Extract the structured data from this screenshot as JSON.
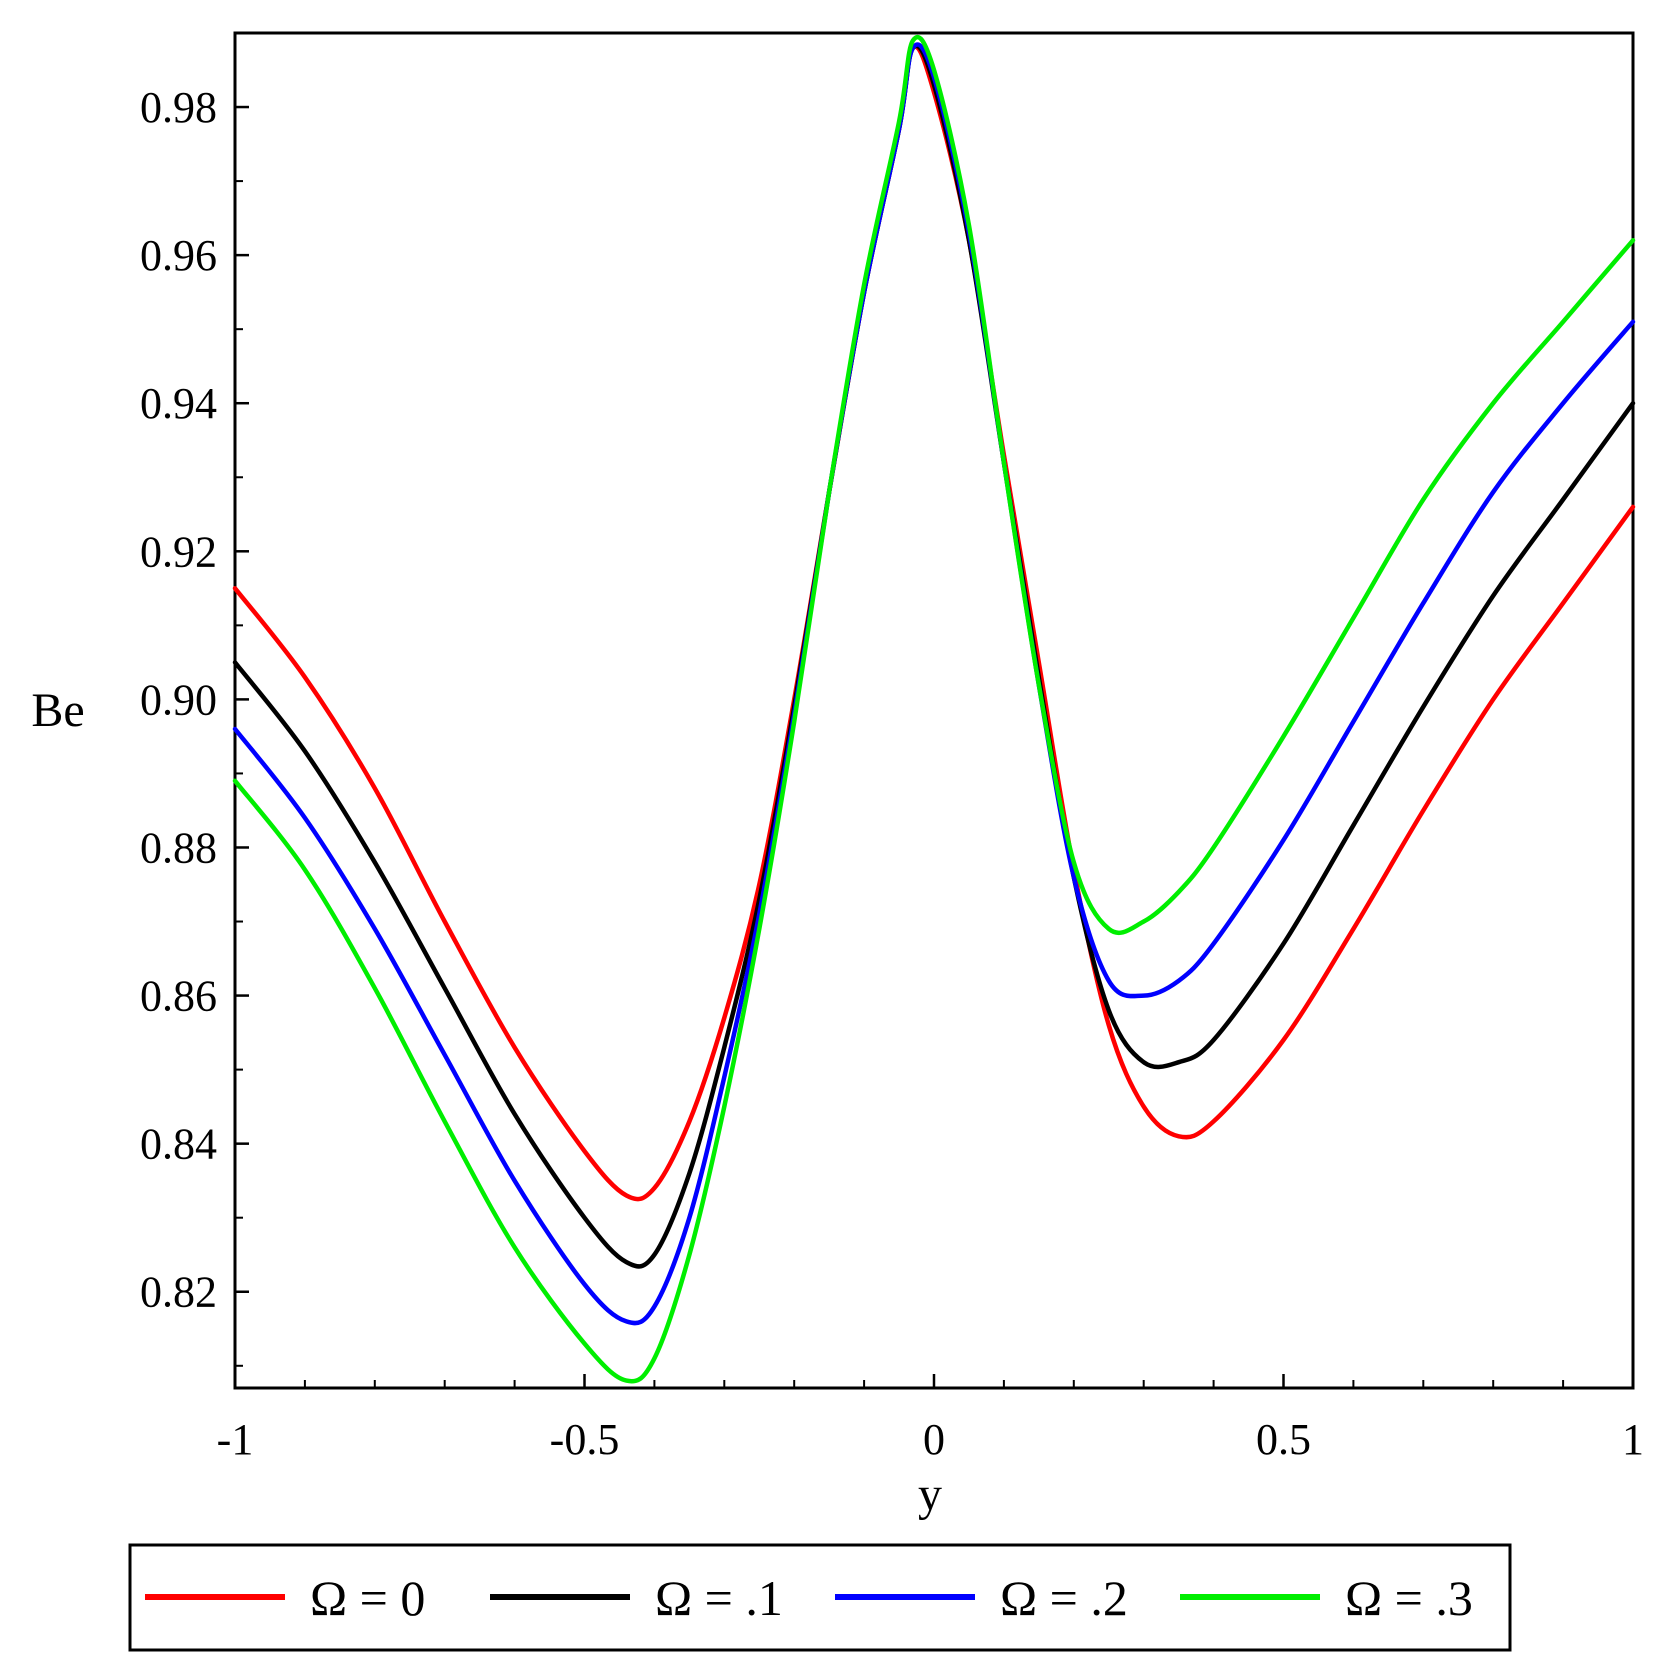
{
  "chart_data": {
    "type": "line",
    "title": "",
    "xlabel": "y",
    "ylabel": "Be",
    "xlim": [
      -1,
      1
    ],
    "ylim": [
      0.807,
      0.99
    ],
    "x_ticks": [
      -1,
      -0.5,
      0,
      0.5,
      1
    ],
    "x_tick_labels": [
      "-1",
      "-0.5",
      "0",
      "0.5",
      "1"
    ],
    "y_ticks": [
      0.82,
      0.84,
      0.86,
      0.88,
      0.9,
      0.92,
      0.94,
      0.96,
      0.98
    ],
    "y_tick_labels": [
      "0.82",
      "0.84",
      "0.86",
      "0.88",
      "0.90",
      "0.92",
      "0.94",
      "0.96",
      "0.98"
    ],
    "grid": false,
    "legend_position": "bottom",
    "x": [
      -1,
      -0.9,
      -0.8,
      -0.7,
      -0.6,
      -0.5,
      -0.44,
      -0.4,
      -0.35,
      -0.3,
      -0.25,
      -0.2,
      -0.15,
      -0.1,
      -0.05,
      -0.03,
      0,
      0.05,
      0.1,
      0.15,
      0.2,
      0.25,
      0.3,
      0.35,
      0.4,
      0.5,
      0.6,
      0.7,
      0.8,
      0.9,
      1
    ],
    "series": [
      {
        "name": "Ω = 0",
        "color": "#ff0000",
        "values": [
          0.915,
          0.903,
          0.888,
          0.87,
          0.853,
          0.839,
          0.833,
          0.834,
          0.843,
          0.857,
          0.875,
          0.9,
          0.928,
          0.955,
          0.977,
          0.988,
          0.982,
          0.962,
          0.933,
          0.905,
          0.877,
          0.856,
          0.845,
          0.841,
          0.843,
          0.854,
          0.869,
          0.885,
          0.9,
          0.913,
          0.926
        ]
      },
      {
        "name": "Ω = .1",
        "color": "#000000",
        "values": [
          0.905,
          0.893,
          0.878,
          0.861,
          0.844,
          0.83,
          0.824,
          0.825,
          0.836,
          0.853,
          0.873,
          0.899,
          0.928,
          0.955,
          0.977,
          0.988,
          0.983,
          0.962,
          0.932,
          0.903,
          0.876,
          0.858,
          0.851,
          0.851,
          0.854,
          0.867,
          0.883,
          0.899,
          0.914,
          0.927,
          0.94
        ]
      },
      {
        "name": "Ω = .2",
        "color": "#0000ff",
        "values": [
          0.896,
          0.884,
          0.869,
          0.852,
          0.835,
          0.821,
          0.816,
          0.818,
          0.83,
          0.849,
          0.871,
          0.898,
          0.928,
          0.955,
          0.977,
          0.988,
          0.984,
          0.963,
          0.932,
          0.902,
          0.876,
          0.862,
          0.86,
          0.862,
          0.867,
          0.881,
          0.897,
          0.913,
          0.928,
          0.94,
          0.951
        ]
      },
      {
        "name": "Ω = .3",
        "color": "#00ee00",
        "values": [
          0.889,
          0.877,
          0.861,
          0.843,
          0.826,
          0.813,
          0.808,
          0.811,
          0.825,
          0.845,
          0.869,
          0.897,
          0.928,
          0.956,
          0.978,
          0.989,
          0.985,
          0.964,
          0.932,
          0.902,
          0.878,
          0.869,
          0.87,
          0.874,
          0.88,
          0.895,
          0.911,
          0.927,
          0.94,
          0.951,
          0.962
        ]
      }
    ]
  }
}
